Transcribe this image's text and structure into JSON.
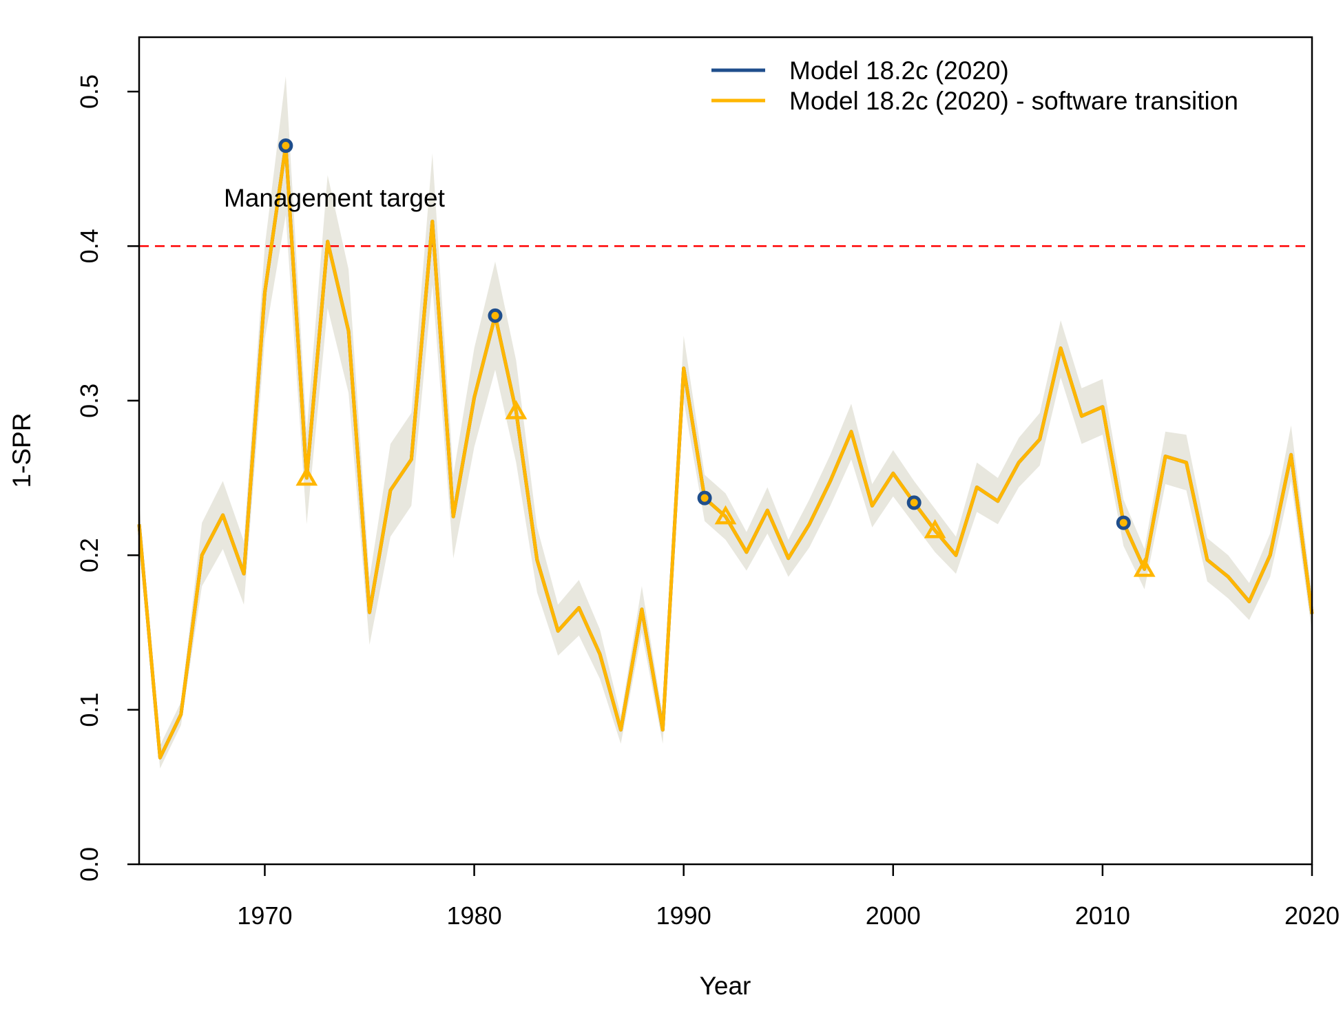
{
  "chart_data": {
    "type": "line",
    "title": "",
    "xlabel": "Year",
    "ylabel": "1-SPR",
    "xlim": [
      1964,
      2020
    ],
    "ylim": [
      0,
      0.5
    ],
    "x_ticks": [
      "1970",
      "1980",
      "1990",
      "2000",
      "2010",
      "2020"
    ],
    "y_ticks": [
      "0.0",
      "0.1",
      "0.2",
      "0.3",
      "0.4",
      "0.5"
    ],
    "grid": false,
    "legend_position": "top-right",
    "annotation": "Management target",
    "reference_line": {
      "y": 0.4,
      "style": "dashed",
      "color": "#ff0000"
    },
    "years": [
      1964,
      1965,
      1966,
      1967,
      1968,
      1969,
      1970,
      1971,
      1972,
      1973,
      1974,
      1975,
      1976,
      1977,
      1978,
      1979,
      1980,
      1981,
      1982,
      1983,
      1984,
      1985,
      1986,
      1987,
      1988,
      1989,
      1990,
      1991,
      1992,
      1993,
      1994,
      1995,
      1996,
      1997,
      1998,
      1999,
      2000,
      2001,
      2002,
      2003,
      2004,
      2005,
      2006,
      2007,
      2008,
      2009,
      2010,
      2011,
      2012,
      2013,
      2014,
      2015,
      2016,
      2017,
      2018,
      2019,
      2020
    ],
    "series": [
      {
        "name": "Model 18.2c (2020)",
        "color": "#1f4e8c",
        "marker": "circle",
        "values": [
          0.22,
          0.069,
          0.097,
          0.2,
          0.226,
          0.188,
          0.37,
          0.465,
          0.25,
          0.403,
          0.345,
          0.163,
          0.242,
          0.262,
          0.416,
          0.225,
          0.302,
          0.355,
          0.293,
          0.197,
          0.151,
          0.166,
          0.136,
          0.087,
          0.165,
          0.087,
          0.321,
          0.237,
          0.225,
          0.202,
          0.229,
          0.198,
          0.22,
          0.248,
          0.28,
          0.232,
          0.253,
          0.234,
          0.216,
          0.2,
          0.244,
          0.235,
          0.26,
          0.275,
          0.334,
          0.29,
          0.296,
          0.221,
          0.191,
          0.264,
          0.26,
          0.197,
          0.186,
          0.17,
          0.2,
          0.265,
          0.162
        ]
      },
      {
        "name": "Model 18.2c (2020) - software transition",
        "color": "#ffb600",
        "marker": "triangle",
        "values": [
          0.22,
          0.069,
          0.097,
          0.2,
          0.226,
          0.188,
          0.37,
          0.465,
          0.25,
          0.403,
          0.345,
          0.163,
          0.242,
          0.262,
          0.416,
          0.225,
          0.302,
          0.355,
          0.293,
          0.197,
          0.151,
          0.166,
          0.136,
          0.087,
          0.165,
          0.087,
          0.321,
          0.237,
          0.225,
          0.202,
          0.229,
          0.198,
          0.22,
          0.248,
          0.28,
          0.232,
          0.253,
          0.234,
          0.216,
          0.2,
          0.244,
          0.235,
          0.26,
          0.275,
          0.334,
          0.29,
          0.296,
          0.221,
          0.191,
          0.264,
          0.26,
          0.197,
          0.186,
          0.17,
          0.2,
          0.265,
          0.162
        ]
      }
    ],
    "interval_band": {
      "color": "#e8e7de",
      "lower": [
        0.205,
        0.062,
        0.09,
        0.18,
        0.204,
        0.168,
        0.34,
        0.42,
        0.22,
        0.36,
        0.305,
        0.142,
        0.212,
        0.232,
        0.375,
        0.198,
        0.27,
        0.32,
        0.26,
        0.176,
        0.135,
        0.148,
        0.12,
        0.078,
        0.15,
        0.078,
        0.3,
        0.222,
        0.21,
        0.19,
        0.214,
        0.186,
        0.205,
        0.232,
        0.262,
        0.218,
        0.238,
        0.22,
        0.202,
        0.188,
        0.228,
        0.22,
        0.244,
        0.258,
        0.315,
        0.272,
        0.278,
        0.206,
        0.178,
        0.246,
        0.242,
        0.183,
        0.172,
        0.158,
        0.186,
        0.248,
        0.15
      ],
      "upper": [
        0.235,
        0.077,
        0.105,
        0.221,
        0.248,
        0.209,
        0.4,
        0.51,
        0.28,
        0.446,
        0.385,
        0.185,
        0.272,
        0.292,
        0.46,
        0.252,
        0.334,
        0.39,
        0.326,
        0.218,
        0.168,
        0.184,
        0.152,
        0.096,
        0.18,
        0.096,
        0.342,
        0.252,
        0.24,
        0.215,
        0.244,
        0.21,
        0.236,
        0.265,
        0.298,
        0.246,
        0.268,
        0.248,
        0.23,
        0.212,
        0.26,
        0.25,
        0.276,
        0.292,
        0.352,
        0.308,
        0.314,
        0.236,
        0.204,
        0.28,
        0.278,
        0.211,
        0.2,
        0.182,
        0.214,
        0.284,
        0.174
      ]
    },
    "marked_points": {
      "circle_years": [
        1971,
        1981,
        1991,
        2001,
        2011
      ],
      "triangle_years": [
        1972,
        1982,
        1992,
        2002,
        2012
      ]
    }
  }
}
